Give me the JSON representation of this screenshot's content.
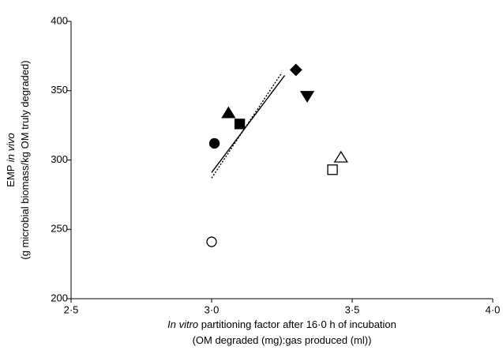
{
  "chart_data": {
    "type": "scatter",
    "xlim": [
      2.5,
      4.0
    ],
    "xticks": [
      {
        "value": 2.5,
        "label": "2·5"
      },
      {
        "value": 3.0,
        "label": "3·0"
      },
      {
        "value": 3.5,
        "label": "3·5"
      },
      {
        "value": 4.0,
        "label": "4·0"
      }
    ],
    "ylim": [
      200,
      400
    ],
    "yticks": [
      200,
      250,
      300,
      350,
      400
    ],
    "grid": false,
    "color": "#000000",
    "xlabel": [
      [
        {
          "text": "In vitro",
          "italic": true
        },
        {
          "text": " partitioning factor after 16·0 h of incubation",
          "italic": false
        }
      ],
      [
        {
          "text": "(OM degraded (mg):gas produced (ml))",
          "italic": false
        }
      ]
    ],
    "ylabel": [
      [
        {
          "text": "EMP ",
          "italic": false
        },
        {
          "text": "in vivo",
          "italic": true
        }
      ],
      [
        {
          "text": "(g microbial biomass/kg OM truly degraded)",
          "italic": false
        }
      ]
    ],
    "points": [
      {
        "x": 3.0,
        "y": 241,
        "marker": "circle",
        "filled": false
      },
      {
        "x": 3.01,
        "y": 312,
        "marker": "circle",
        "filled": true
      },
      {
        "x": 3.06,
        "y": 334,
        "marker": "triangle-up",
        "filled": true
      },
      {
        "x": 3.1,
        "y": 326,
        "marker": "square",
        "filled": true
      },
      {
        "x": 3.3,
        "y": 365,
        "marker": "diamond",
        "filled": true
      },
      {
        "x": 3.34,
        "y": 346,
        "marker": "triangle-down",
        "filled": true
      },
      {
        "x": 3.43,
        "y": 293,
        "marker": "square",
        "filled": false
      },
      {
        "x": 3.46,
        "y": 302,
        "marker": "triangle-up",
        "filled": false
      }
    ],
    "lines": [
      {
        "style": "solid",
        "x": [
          3.0,
          3.26
        ],
        "y": [
          291,
          361
        ]
      },
      {
        "style": "dotted",
        "x": [
          3.0,
          3.25
        ],
        "y": [
          287,
          363
        ]
      }
    ]
  }
}
